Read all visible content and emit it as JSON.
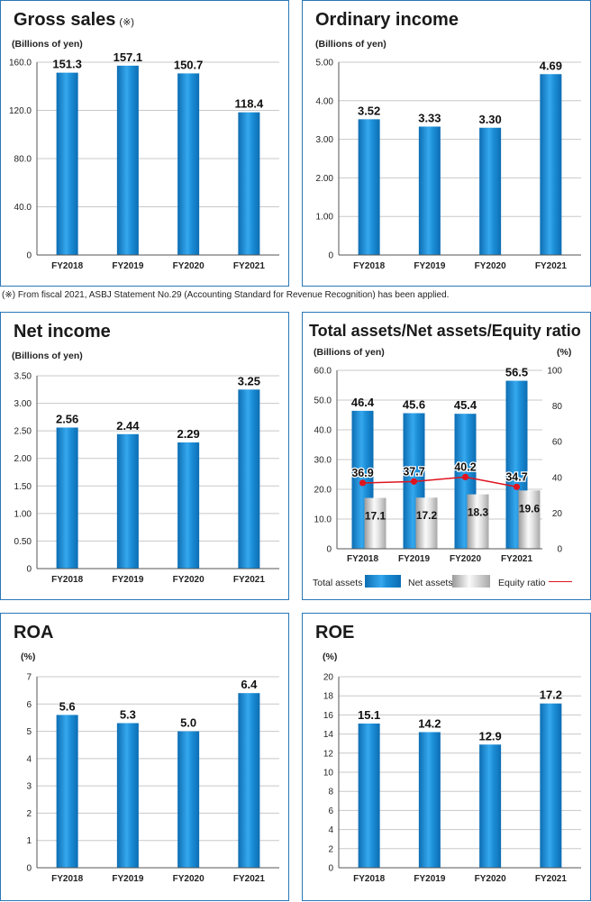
{
  "footnote": "(※) From fiscal 2021, ASBJ Statement No.29 (Accounting Standard for Revenue Recognition) has been applied.",
  "colors": {
    "bar": "#1c8fd8",
    "bar_dark": "#0c6db3",
    "line": "#e0141e",
    "border": "#2a78b8",
    "grid": "#c8c8c8"
  },
  "chart_data": [
    {
      "type": "bar",
      "title": "Gross sales",
      "title_note": "(※)",
      "ylabel": "(Billions of yen)",
      "categories": [
        "FY2018",
        "FY2019",
        "FY2020",
        "FY2021"
      ],
      "values": [
        151.3,
        157.1,
        150.7,
        118.4
      ],
      "value_labels": [
        "151.3",
        "157.1",
        "150.7",
        "118.4"
      ],
      "ylim": [
        0,
        160
      ],
      "yticks": [
        0,
        40,
        80,
        120,
        160
      ],
      "ytick_labels": [
        "0",
        "40.0",
        "80.0",
        "120.0",
        "160.0"
      ]
    },
    {
      "type": "bar",
      "title": "Ordinary income",
      "ylabel": "(Billions of yen)",
      "categories": [
        "FY2018",
        "FY2019",
        "FY2020",
        "FY2021"
      ],
      "values": [
        3.52,
        3.33,
        3.3,
        4.69
      ],
      "value_labels": [
        "3.52",
        "3.33",
        "3.30",
        "4.69"
      ],
      "ylim": [
        0,
        5
      ],
      "yticks": [
        0,
        1,
        2,
        3,
        4,
        5
      ],
      "ytick_labels": [
        "0",
        "1.00",
        "2.00",
        "3.00",
        "4.00",
        "5.00"
      ]
    },
    {
      "type": "bar",
      "title": "Net income",
      "ylabel": "(Billions of yen)",
      "categories": [
        "FY2018",
        "FY2019",
        "FY2020",
        "FY2021"
      ],
      "values": [
        2.56,
        2.44,
        2.29,
        3.25
      ],
      "value_labels": [
        "2.56",
        "2.44",
        "2.29",
        "3.25"
      ],
      "ylim": [
        0,
        3.5
      ],
      "yticks": [
        0,
        0.5,
        1,
        1.5,
        2,
        2.5,
        3,
        3.5
      ],
      "ytick_labels": [
        "0",
        "0.50",
        "1.00",
        "1.50",
        "2.00",
        "2.50",
        "3.00",
        "3.50"
      ]
    },
    {
      "type": "bar",
      "title": "Total assets/Net assets/Equity ratio",
      "ylabel": "(Billions of yen)",
      "ylabel_right": "(%)",
      "categories": [
        "FY2018",
        "FY2019",
        "FY2020",
        "FY2021"
      ],
      "series": [
        {
          "name": "Total assets",
          "kind": "bar",
          "values": [
            46.4,
            45.6,
            45.4,
            56.5
          ],
          "labels": [
            "46.4",
            "45.6",
            "45.4",
            "56.5"
          ]
        },
        {
          "name": "Net assets",
          "kind": "bar",
          "values": [
            17.1,
            17.2,
            18.3,
            19.6
          ],
          "labels": [
            "17.1",
            "17.2",
            "18.3",
            "19.6"
          ]
        },
        {
          "name": "Equity ratio",
          "kind": "line",
          "axis": "right",
          "values": [
            36.9,
            37.7,
            40.2,
            34.7
          ],
          "labels": [
            "36.9",
            "37.7",
            "40.2",
            "34.7"
          ]
        }
      ],
      "ylim": [
        0,
        60
      ],
      "yticks": [
        0,
        10,
        20,
        30,
        40,
        50,
        60
      ],
      "ytick_labels": [
        "0",
        "10.0",
        "20.0",
        "30.0",
        "40.0",
        "50.0",
        "60.0"
      ],
      "ylim_right": [
        0,
        100
      ],
      "yticks_right": [
        0,
        20,
        40,
        60,
        80,
        100
      ],
      "ytick_labels_right": [
        "0",
        "20",
        "40",
        "60",
        "80",
        "100"
      ],
      "legend": [
        "Total assets",
        "Net assets",
        "Equity ratio"
      ]
    },
    {
      "type": "bar",
      "title": "ROA",
      "ylabel": "(%)",
      "categories": [
        "FY2018",
        "FY2019",
        "FY2020",
        "FY2021"
      ],
      "values": [
        5.6,
        5.3,
        5.0,
        6.4
      ],
      "value_labels": [
        "5.6",
        "5.3",
        "5.0",
        "6.4"
      ],
      "ylim": [
        0,
        7
      ],
      "yticks": [
        0,
        1,
        2,
        3,
        4,
        5,
        6,
        7
      ],
      "ytick_labels": [
        "0",
        "1",
        "2",
        "3",
        "4",
        "5",
        "6",
        "7"
      ]
    },
    {
      "type": "bar",
      "title": "ROE",
      "ylabel": "(%)",
      "categories": [
        "FY2018",
        "FY2019",
        "FY2020",
        "FY2021"
      ],
      "values": [
        15.1,
        14.2,
        12.9,
        17.2
      ],
      "value_labels": [
        "15.1",
        "14.2",
        "12.9",
        "17.2"
      ],
      "ylim": [
        0,
        20
      ],
      "yticks": [
        0,
        2,
        4,
        6,
        8,
        10,
        12,
        14,
        16,
        18,
        20
      ],
      "ytick_labels": [
        "0",
        "2",
        "4",
        "6",
        "8",
        "10",
        "12",
        "14",
        "16",
        "18",
        "20"
      ]
    }
  ]
}
